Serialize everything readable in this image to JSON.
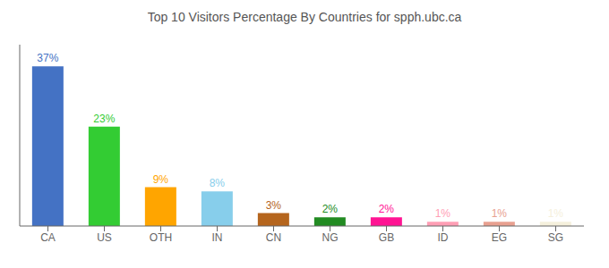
{
  "chart_data": {
    "type": "bar",
    "title": "Top 10 Visitors Percentage By Countries for spph.ubc.ca",
    "categories": [
      "CA",
      "US",
      "OTH",
      "IN",
      "CN",
      "NG",
      "GB",
      "ID",
      "EG",
      "SG"
    ],
    "values": [
      37,
      23,
      9,
      8,
      3,
      2,
      2,
      1,
      1,
      1
    ],
    "value_labels": [
      "37%",
      "23%",
      "9%",
      "8%",
      "3%",
      "2%",
      "2%",
      "1%",
      "1%",
      "1%"
    ],
    "colors": [
      "#4472c4",
      "#33cc33",
      "#ffa500",
      "#87ceeb",
      "#b5651d",
      "#228B22",
      "#ff1493",
      "#ff9eb5",
      "#e8a090",
      "#f5f0dc"
    ],
    "ylim": [
      0,
      42
    ],
    "data_labels": true,
    "tick_labels": "x",
    "grid": false
  }
}
